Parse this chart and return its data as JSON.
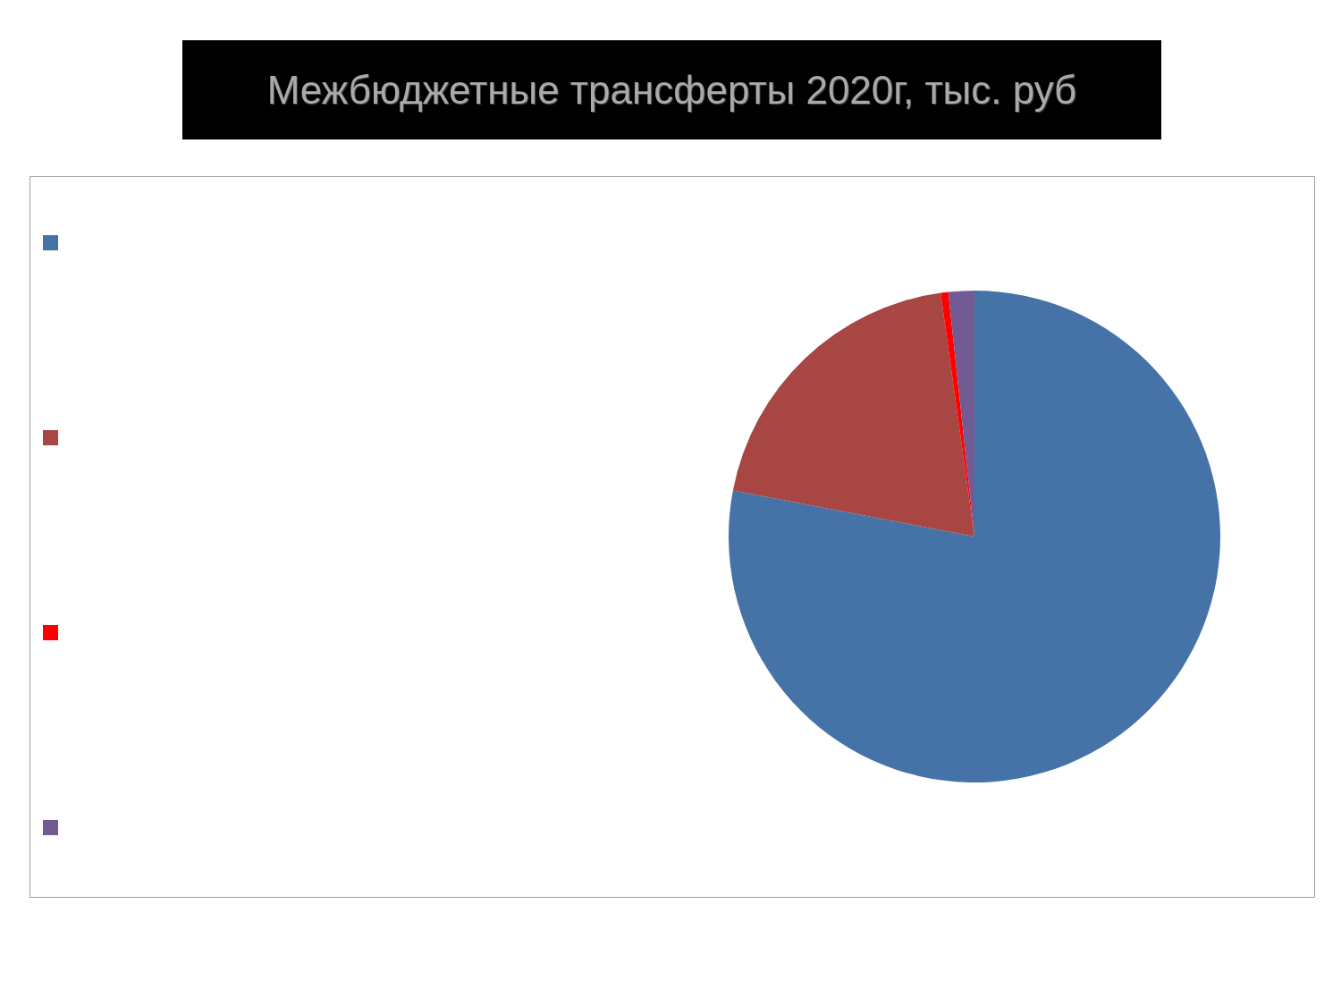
{
  "chart_data": {
    "type": "pie",
    "title": "Межбюджетные трансферты 2020г, тыс. руб",
    "categories": [
      null,
      null,
      null,
      null
    ],
    "values": [
      78,
      19.8,
      0.5,
      1.7
    ],
    "colors": [
      "#4573a7",
      "#a84644",
      "#ff0000",
      "#725a93"
    ]
  }
}
